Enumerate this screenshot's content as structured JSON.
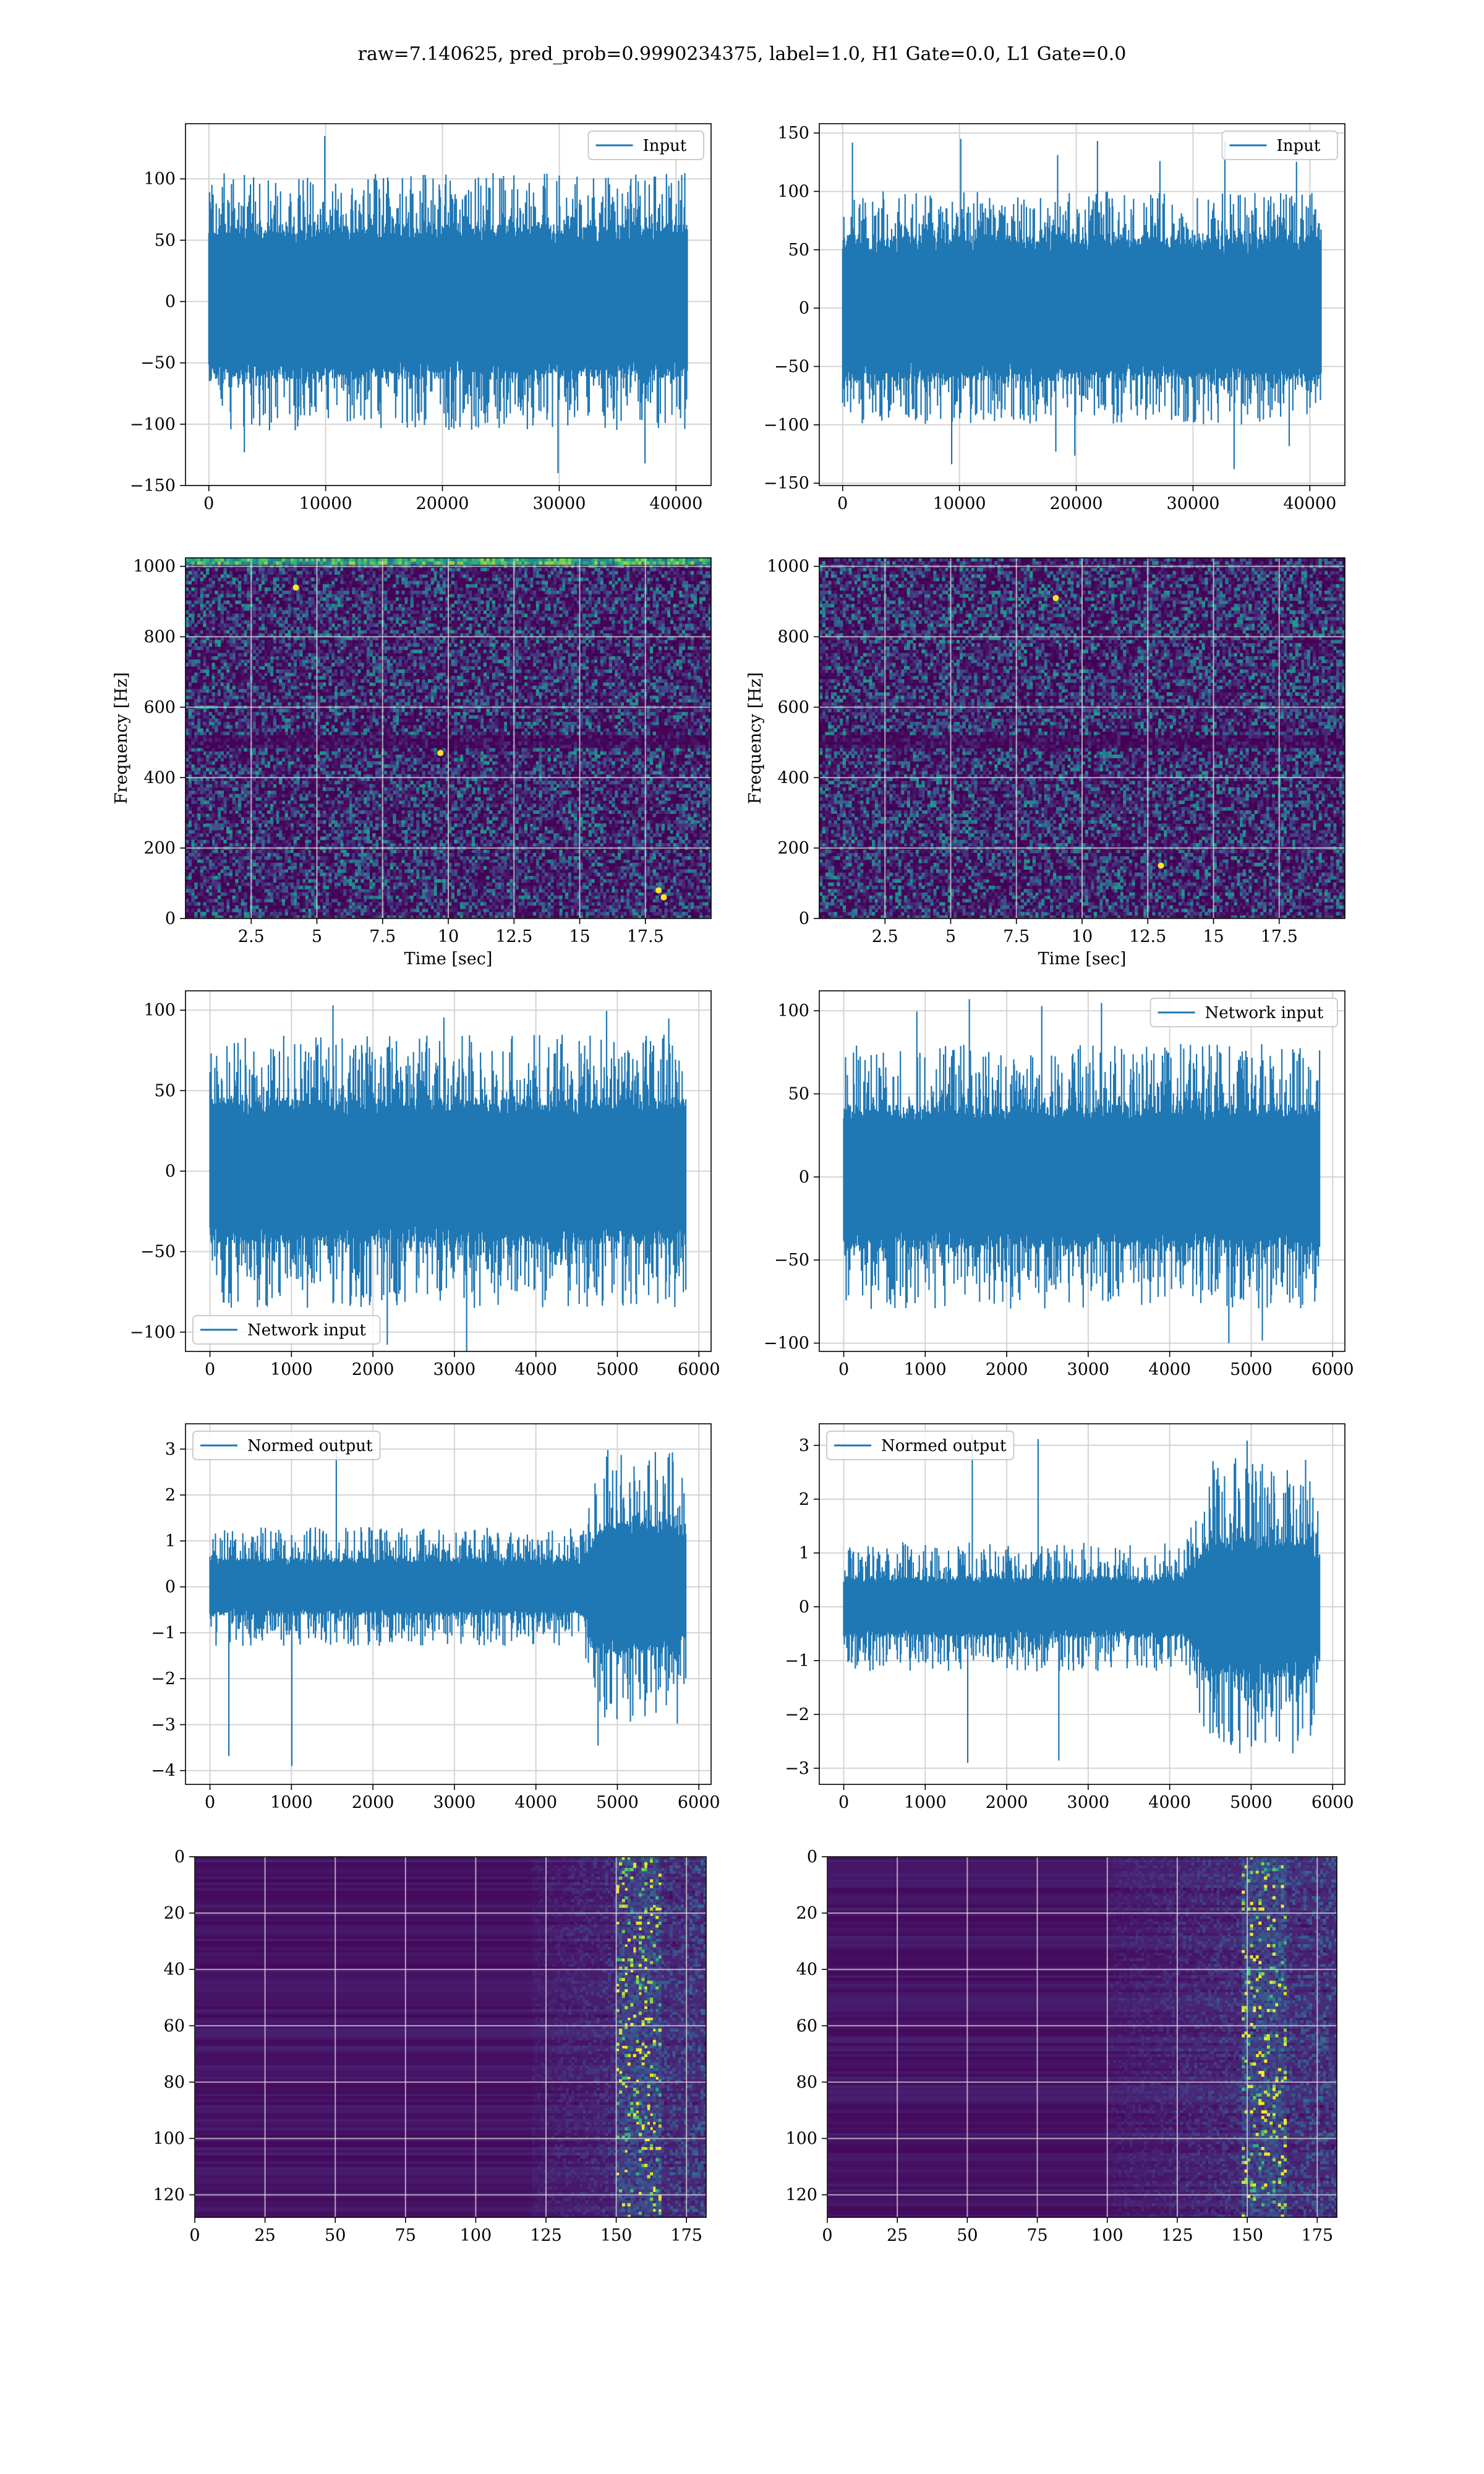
{
  "suptitle": "raw=7.140625, pred_prob=0.9990234375, label=1.0, H1 Gate=0.0, L1 Gate=0.0",
  "colors": {
    "line": "#1f77b4",
    "grid": "#d4d4d4",
    "viridis_dark": "#440154",
    "viridis_mid": "#21918c",
    "viridis_bright": "#fde725"
  },
  "chart_data": [
    {
      "id": "r1c1",
      "type": "line",
      "legend": "Input",
      "legend_pos": "top-right",
      "xlim": [
        -2000,
        43000
      ],
      "ylim": [
        -150,
        145
      ],
      "xticks": [
        0,
        10000,
        20000,
        30000,
        40000
      ],
      "yticks": [
        -150,
        -100,
        -50,
        0,
        50,
        100
      ],
      "signal": {
        "n": 40960,
        "x_end": 40960,
        "core": 55,
        "peak": 105,
        "min": -140,
        "max": 135,
        "late_gain": 1.0,
        "late_start": 1.0,
        "seed": 11
      }
    },
    {
      "id": "r1c2",
      "type": "line",
      "legend": "Input",
      "legend_pos": "top-right",
      "xlim": [
        -2000,
        43000
      ],
      "ylim": [
        -152,
        158
      ],
      "xticks": [
        0,
        10000,
        20000,
        30000,
        40000
      ],
      "yticks": [
        -150,
        -100,
        -50,
        0,
        50,
        100,
        150
      ],
      "signal": {
        "n": 40960,
        "x_end": 40960,
        "core": 55,
        "peak": 100,
        "min": -138,
        "max": 145,
        "late_gain": 1.0,
        "late_start": 1.0,
        "seed": 23
      }
    },
    {
      "id": "r2c1",
      "type": "heatmap",
      "xlabel": "Time [sec]",
      "ylabel": "Frequency [Hz]",
      "xlim": [
        0,
        20
      ],
      "ylim": [
        0,
        1024
      ],
      "xticks": [
        2.5,
        5.0,
        7.5,
        10.0,
        12.5,
        15.0,
        17.5
      ],
      "yticks": [
        0,
        200,
        400,
        600,
        800,
        1000
      ],
      "hot_spots": [
        [
          9.7,
          470
        ],
        [
          18.0,
          80
        ],
        [
          18.2,
          60
        ],
        [
          4.2,
          940
        ]
      ],
      "top_band": true,
      "seed": 31
    },
    {
      "id": "r2c2",
      "type": "heatmap",
      "xlabel": "Time [sec]",
      "ylabel": "Frequency [Hz]",
      "xlim": [
        0,
        20
      ],
      "ylim": [
        0,
        1024
      ],
      "xticks": [
        2.5,
        5.0,
        7.5,
        10.0,
        12.5,
        15.0,
        17.5
      ],
      "yticks": [
        0,
        200,
        400,
        600,
        800,
        1000
      ],
      "hot_spots": [
        [
          9.0,
          910
        ],
        [
          13.0,
          150
        ]
      ],
      "top_band": false,
      "seed": 47
    },
    {
      "id": "r3c1",
      "type": "line",
      "legend": "Network input",
      "legend_pos": "bottom-left",
      "xlim": [
        -300,
        6150
      ],
      "ylim": [
        -112,
        112
      ],
      "xticks": [
        0,
        1000,
        2000,
        3000,
        4000,
        5000,
        6000
      ],
      "yticks": [
        -100,
        -50,
        0,
        50,
        100
      ],
      "signal": {
        "n": 5840,
        "x_end": 5840,
        "core": 40,
        "peak": 85,
        "min": -113,
        "max": 103,
        "late_gain": 1.0,
        "late_start": 1.0,
        "seed": 53
      }
    },
    {
      "id": "r3c2",
      "type": "line",
      "legend": "Network input",
      "legend_pos": "top-right",
      "xlim": [
        -300,
        6150
      ],
      "ylim": [
        -105,
        112
      ],
      "xticks": [
        0,
        1000,
        2000,
        3000,
        4000,
        5000,
        6000
      ],
      "yticks": [
        -100,
        -50,
        0,
        50,
        100
      ],
      "signal": {
        "n": 5840,
        "x_end": 5840,
        "core": 38,
        "peak": 80,
        "min": -100,
        "max": 107,
        "late_gain": 1.0,
        "late_start": 1.0,
        "seed": 67
      }
    },
    {
      "id": "r4c1",
      "type": "line",
      "legend": "Normed output",
      "legend_pos": "top-left",
      "xlim": [
        -300,
        6150
      ],
      "ylim": [
        -4.3,
        3.55
      ],
      "xticks": [
        0,
        1000,
        2000,
        3000,
        4000,
        5000,
        6000
      ],
      "yticks": [
        -4,
        -3,
        -2,
        -1,
        0,
        1,
        2,
        3
      ],
      "signal": {
        "n": 5840,
        "x_end": 5840,
        "core": 0.55,
        "peak": 1.3,
        "min": -3.9,
        "max": 3.2,
        "late_gain": 2.3,
        "late_start": 0.78,
        "seed": 71
      }
    },
    {
      "id": "r4c2",
      "type": "line",
      "legend": "Normed output",
      "legend_pos": "top-left",
      "xlim": [
        -300,
        6150
      ],
      "ylim": [
        -3.3,
        3.4
      ],
      "xticks": [
        0,
        1000,
        2000,
        3000,
        4000,
        5000,
        6000
      ],
      "yticks": [
        -3,
        -2,
        -1,
        0,
        1,
        2,
        3
      ],
      "signal": {
        "n": 5840,
        "x_end": 5840,
        "core": 0.5,
        "peak": 1.2,
        "min": -2.9,
        "max": 3.2,
        "late_gain": 2.3,
        "late_start": 0.72,
        "seed": 83
      }
    },
    {
      "id": "r5c1",
      "type": "heatmap",
      "inverted_y": true,
      "xlim": [
        0,
        182
      ],
      "ylim": [
        0,
        128
      ],
      "xticks": [
        0,
        25,
        50,
        75,
        100,
        125,
        150,
        175
      ],
      "yticks": [
        0,
        20,
        40,
        60,
        80,
        100,
        120
      ],
      "activity_start": 120,
      "bright_band": [
        150,
        165
      ],
      "seed": 97
    },
    {
      "id": "r5c2",
      "type": "heatmap",
      "inverted_y": true,
      "xlim": [
        0,
        182
      ],
      "ylim": [
        0,
        128
      ],
      "xticks": [
        0,
        25,
        50,
        75,
        100,
        125,
        150,
        175
      ],
      "yticks": [
        0,
        20,
        40,
        60,
        80,
        100,
        120
      ],
      "activity_start": 100,
      "bright_band": [
        148,
        163
      ],
      "seed": 101
    }
  ]
}
